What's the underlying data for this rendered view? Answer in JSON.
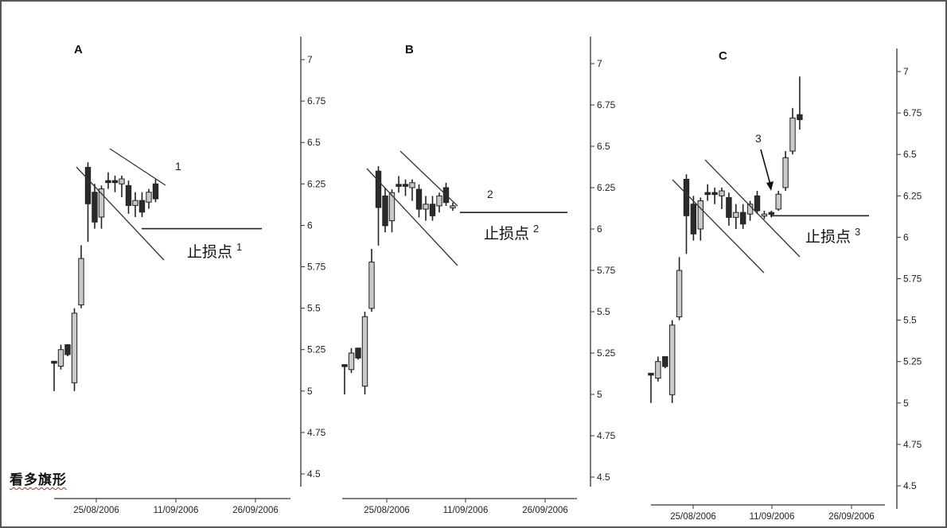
{
  "caption": "看多旗形",
  "stop_label": "止损点",
  "chart_data": [
    {
      "type": "candlestick",
      "panel_label": "A",
      "ytick_labels": [
        "7",
        "6.75",
        "6.5",
        "6.25",
        "6",
        "5.75",
        "5.5",
        "5.25",
        "5",
        "4.75",
        "4.5"
      ],
      "ylim": [
        4.35,
        7.1
      ],
      "xtick_labels": [
        "25/08/2006",
        "11/09/2006",
        "26/09/2006"
      ],
      "candles": [
        {
          "o": 5.18,
          "h": 5.18,
          "l": 5.0,
          "c": 5.18,
          "fill": "dark"
        },
        {
          "o": 5.15,
          "h": 5.28,
          "l": 5.13,
          "c": 5.25,
          "fill": "light"
        },
        {
          "o": 5.28,
          "h": 5.28,
          "l": 5.21,
          "c": 5.22,
          "fill": "dark"
        },
        {
          "o": 5.05,
          "h": 5.5,
          "l": 5.0,
          "c": 5.47,
          "fill": "light"
        },
        {
          "o": 5.52,
          "h": 5.88,
          "l": 5.5,
          "c": 5.8,
          "fill": "light"
        },
        {
          "o": 6.35,
          "h": 6.38,
          "l": 5.9,
          "c": 6.13,
          "fill": "dark"
        },
        {
          "o": 6.2,
          "h": 6.25,
          "l": 5.98,
          "c": 6.02,
          "fill": "dark"
        },
        {
          "o": 6.05,
          "h": 6.24,
          "l": 5.98,
          "c": 6.22,
          "fill": "light"
        },
        {
          "o": 6.27,
          "h": 6.32,
          "l": 6.22,
          "c": 6.26,
          "fill": "dark"
        },
        {
          "o": 6.26,
          "h": 6.3,
          "l": 6.2,
          "c": 6.27,
          "fill": "dark"
        },
        {
          "o": 6.25,
          "h": 6.3,
          "l": 6.17,
          "c": 6.28,
          "fill": "light"
        },
        {
          "o": 6.24,
          "h": 6.27,
          "l": 6.07,
          "c": 6.12,
          "fill": "dark"
        },
        {
          "o": 6.15,
          "h": 6.2,
          "l": 6.05,
          "c": 6.12,
          "fill": "light"
        },
        {
          "o": 6.15,
          "h": 6.2,
          "l": 6.05,
          "c": 6.08,
          "fill": "dark"
        },
        {
          "o": 6.14,
          "h": 6.22,
          "l": 6.1,
          "c": 6.2,
          "fill": "light"
        },
        {
          "o": 6.16,
          "h": 6.28,
          "l": 6.14,
          "c": 6.25,
          "fill": "dark"
        }
      ],
      "callout": "1",
      "stop_value": 5.98,
      "stop_superscript": "1"
    },
    {
      "type": "candlestick",
      "panel_label": "B",
      "ytick_labels": [
        "7",
        "6.75",
        "6.5",
        "6.25",
        "6",
        "5.75",
        "5.5",
        "5.25",
        "5",
        "4.75",
        "4.5"
      ],
      "ylim": [
        4.35,
        7.1
      ],
      "xtick_labels": [
        "25/08/2006",
        "11/09/2006",
        "26/09/2006"
      ],
      "candles": [
        {
          "o": 5.18,
          "h": 5.18,
          "l": 5.0,
          "c": 5.18,
          "fill": "dark"
        },
        {
          "o": 5.15,
          "h": 5.28,
          "l": 5.13,
          "c": 5.25,
          "fill": "light"
        },
        {
          "o": 5.28,
          "h": 5.28,
          "l": 5.21,
          "c": 5.22,
          "fill": "dark"
        },
        {
          "o": 5.05,
          "h": 5.5,
          "l": 5.0,
          "c": 5.47,
          "fill": "light"
        },
        {
          "o": 5.52,
          "h": 5.88,
          "l": 5.5,
          "c": 5.8,
          "fill": "light"
        },
        {
          "o": 6.35,
          "h": 6.38,
          "l": 5.9,
          "c": 6.13,
          "fill": "dark"
        },
        {
          "o": 6.2,
          "h": 6.25,
          "l": 5.98,
          "c": 6.02,
          "fill": "dark"
        },
        {
          "o": 6.05,
          "h": 6.24,
          "l": 5.98,
          "c": 6.22,
          "fill": "light"
        },
        {
          "o": 6.27,
          "h": 6.32,
          "l": 6.22,
          "c": 6.26,
          "fill": "dark"
        },
        {
          "o": 6.26,
          "h": 6.3,
          "l": 6.2,
          "c": 6.27,
          "fill": "dark"
        },
        {
          "o": 6.25,
          "h": 6.3,
          "l": 6.17,
          "c": 6.28,
          "fill": "light"
        },
        {
          "o": 6.24,
          "h": 6.27,
          "l": 6.07,
          "c": 6.12,
          "fill": "dark"
        },
        {
          "o": 6.15,
          "h": 6.2,
          "l": 6.05,
          "c": 6.12,
          "fill": "light"
        },
        {
          "o": 6.15,
          "h": 6.2,
          "l": 6.05,
          "c": 6.08,
          "fill": "dark"
        },
        {
          "o": 6.14,
          "h": 6.22,
          "l": 6.1,
          "c": 6.2,
          "fill": "light"
        },
        {
          "o": 6.16,
          "h": 6.28,
          "l": 6.14,
          "c": 6.25,
          "fill": "dark"
        },
        {
          "o": 6.14,
          "h": 6.16,
          "l": 6.11,
          "c": 6.13,
          "fill": "light"
        }
      ],
      "callout": "2",
      "stop_value": 6.1,
      "stop_superscript": "2"
    },
    {
      "type": "candlestick",
      "panel_label": "C",
      "ytick_labels": [
        "7",
        "6.75",
        "6.5",
        "6.25",
        "6",
        "5.75",
        "5.5",
        "5.25",
        "5",
        "4.75",
        "4.5"
      ],
      "ylim": [
        4.35,
        7.1
      ],
      "xtick_labels": [
        "25/08/2006",
        "11/09/2006",
        "26/09/2006"
      ],
      "candles": [
        {
          "o": 5.18,
          "h": 5.18,
          "l": 5.0,
          "c": 5.18,
          "fill": "dark"
        },
        {
          "o": 5.15,
          "h": 5.28,
          "l": 5.13,
          "c": 5.25,
          "fill": "light"
        },
        {
          "o": 5.28,
          "h": 5.28,
          "l": 5.21,
          "c": 5.22,
          "fill": "dark"
        },
        {
          "o": 5.05,
          "h": 5.5,
          "l": 5.0,
          "c": 5.47,
          "fill": "light"
        },
        {
          "o": 5.52,
          "h": 5.88,
          "l": 5.5,
          "c": 5.8,
          "fill": "light"
        },
        {
          "o": 6.35,
          "h": 6.38,
          "l": 5.9,
          "c": 6.13,
          "fill": "dark"
        },
        {
          "o": 6.2,
          "h": 6.25,
          "l": 5.98,
          "c": 6.02,
          "fill": "dark"
        },
        {
          "o": 6.05,
          "h": 6.24,
          "l": 5.98,
          "c": 6.22,
          "fill": "light"
        },
        {
          "o": 6.27,
          "h": 6.32,
          "l": 6.22,
          "c": 6.26,
          "fill": "dark"
        },
        {
          "o": 6.26,
          "h": 6.3,
          "l": 6.2,
          "c": 6.27,
          "fill": "dark"
        },
        {
          "o": 6.25,
          "h": 6.3,
          "l": 6.17,
          "c": 6.28,
          "fill": "light"
        },
        {
          "o": 6.24,
          "h": 6.27,
          "l": 6.07,
          "c": 6.12,
          "fill": "dark"
        },
        {
          "o": 6.15,
          "h": 6.2,
          "l": 6.05,
          "c": 6.12,
          "fill": "light"
        },
        {
          "o": 6.15,
          "h": 6.2,
          "l": 6.05,
          "c": 6.08,
          "fill": "dark"
        },
        {
          "o": 6.14,
          "h": 6.22,
          "l": 6.1,
          "c": 6.2,
          "fill": "light"
        },
        {
          "o": 6.16,
          "h": 6.28,
          "l": 6.14,
          "c": 6.25,
          "fill": "dark"
        },
        {
          "o": 6.14,
          "h": 6.16,
          "l": 6.11,
          "c": 6.13,
          "fill": "light"
        },
        {
          "o": 6.14,
          "h": 6.16,
          "l": 6.12,
          "c": 6.15,
          "fill": "dark"
        },
        {
          "o": 6.17,
          "h": 6.28,
          "l": 6.16,
          "c": 6.26,
          "fill": "light"
        },
        {
          "o": 6.3,
          "h": 6.52,
          "l": 6.28,
          "c": 6.48,
          "fill": "light"
        },
        {
          "o": 6.52,
          "h": 6.78,
          "l": 6.5,
          "c": 6.72,
          "fill": "light"
        },
        {
          "o": 6.74,
          "h": 6.97,
          "l": 6.65,
          "c": 6.71,
          "fill": "dark"
        }
      ],
      "callout": "3",
      "stop_value": 6.13,
      "stop_superscript": "3"
    }
  ]
}
